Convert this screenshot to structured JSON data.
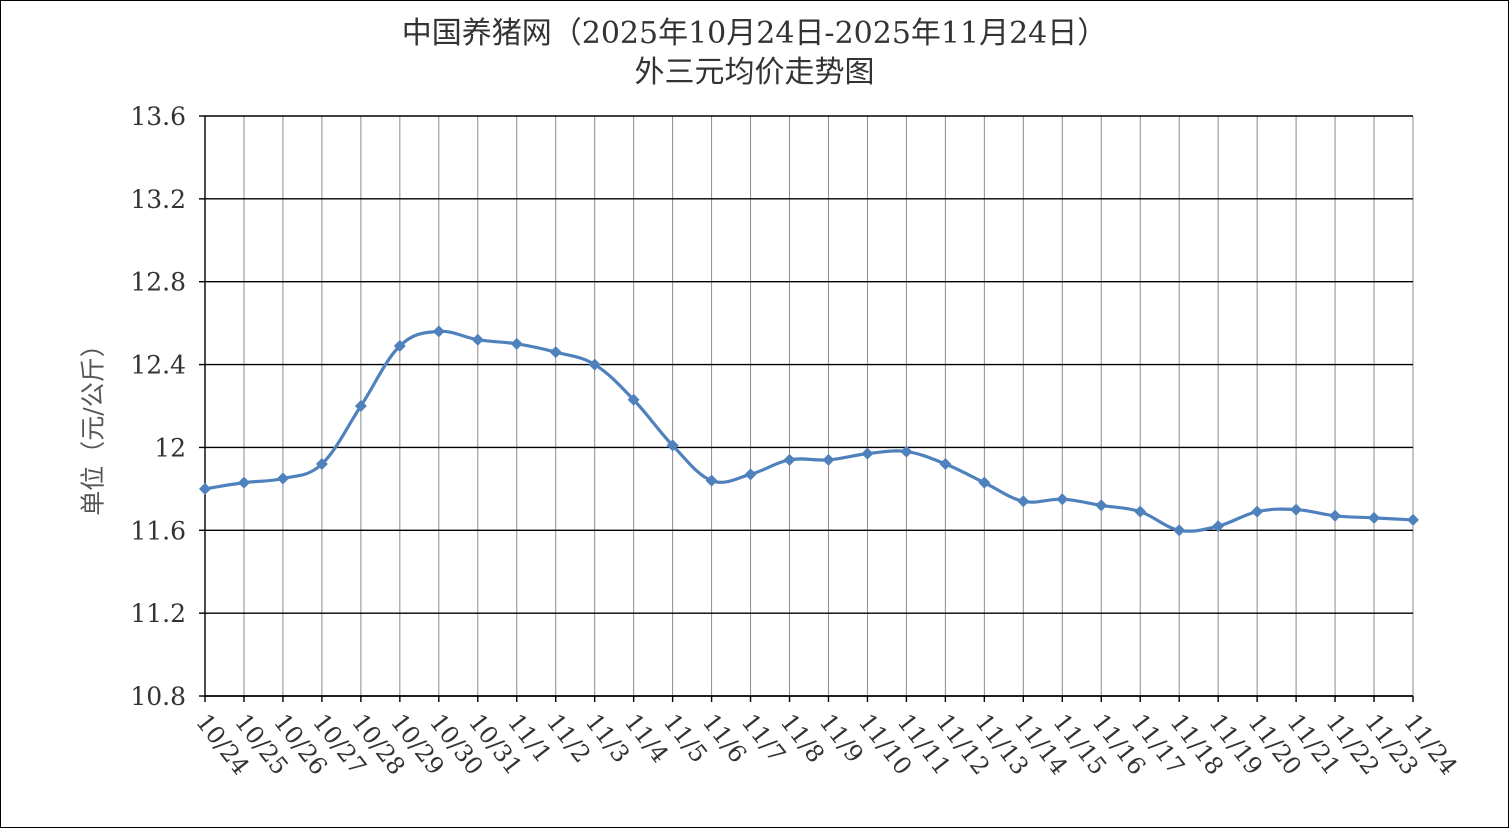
{
  "chart_data": {
    "type": "line",
    "title_line1": "中国养猪网（2025年10月24日-2025年11月24日）",
    "title_line2": "外三元均价走势图",
    "ylabel": "单位（元/公斤）",
    "xlabel": "",
    "ylim": [
      10.8,
      13.6
    ],
    "yticks": [
      "13.6",
      "13.2",
      "12.8",
      "12.4",
      "12",
      "11.6",
      "11.2",
      "10.8"
    ],
    "grid": true,
    "line_color": "#4F81BD",
    "categories": [
      "10/24",
      "10/25",
      "10/26",
      "10/27",
      "10/28",
      "10/29",
      "10/30",
      "10/31",
      "11/1",
      "11/2",
      "11/3",
      "11/4",
      "11/5",
      "11/6",
      "11/7",
      "11/8",
      "11/9",
      "11/10",
      "11/11",
      "11/12",
      "11/13",
      "11/14",
      "11/15",
      "11/16",
      "11/17",
      "11/18",
      "11/19",
      "11/20",
      "11/21",
      "11/22",
      "11/23",
      "11/24"
    ],
    "series": [
      {
        "values": [
          11.8,
          11.83,
          11.85,
          11.92,
          12.2,
          12.49,
          12.56,
          12.52,
          12.5,
          12.46,
          12.4,
          12.23,
          12.01,
          11.84,
          11.87,
          11.94,
          11.94,
          11.97,
          11.98,
          11.92,
          11.83,
          11.74,
          11.75,
          11.72,
          11.69,
          11.6,
          11.62,
          11.69,
          11.7,
          11.67,
          11.66,
          11.65
        ]
      }
    ]
  }
}
